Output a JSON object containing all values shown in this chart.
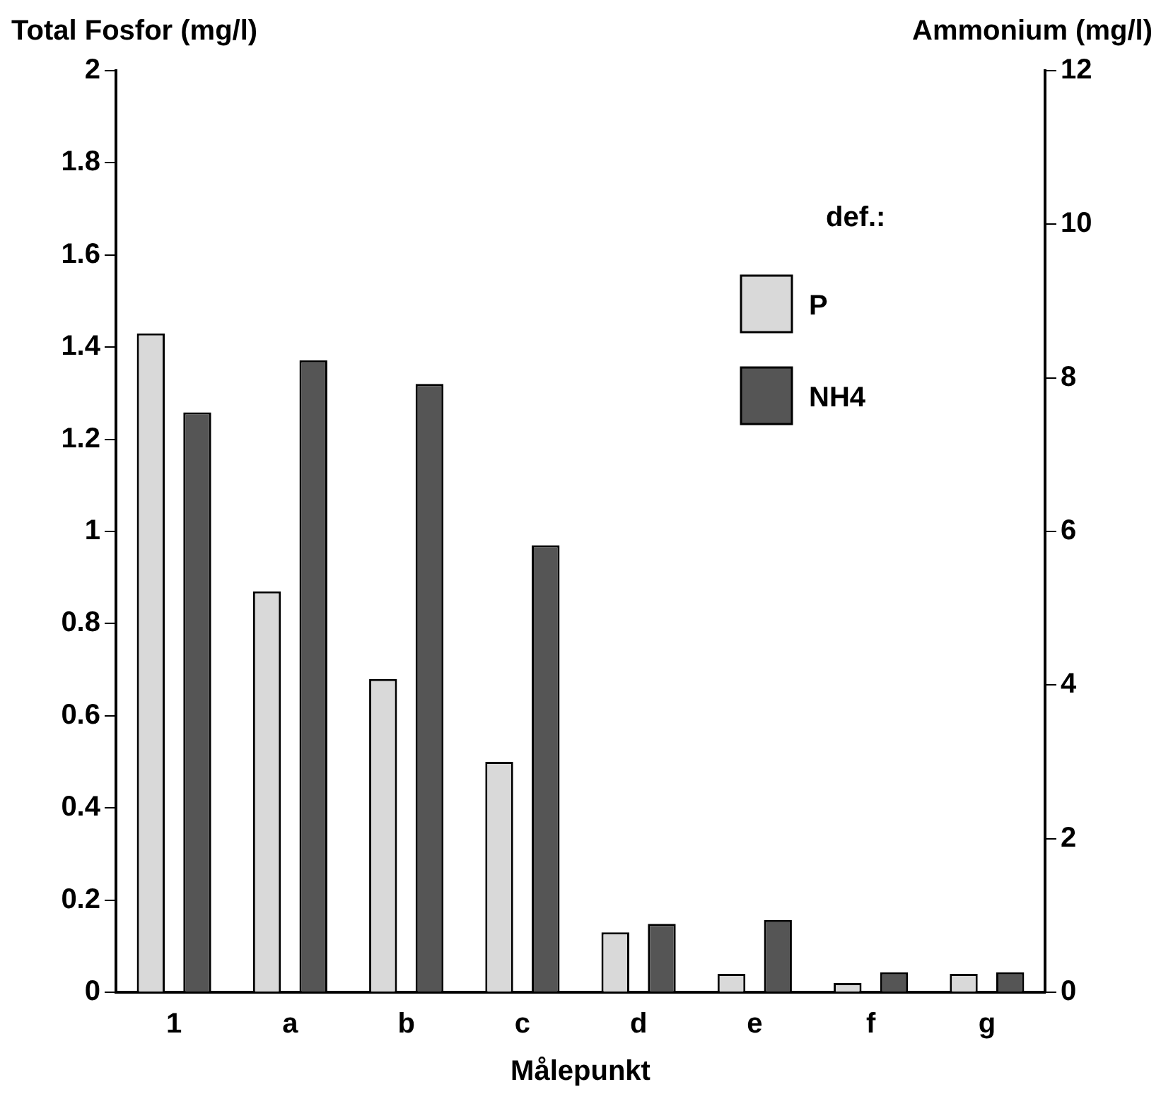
{
  "chart_data": {
    "type": "bar",
    "xlabel": "Målepunkt",
    "ylabel": "Total Fosfor (mg/l)",
    "y2label": "Ammonium (mg/l)",
    "legend_title": "def.:",
    "legend": "top right",
    "grid": false,
    "categories": [
      "1",
      "a",
      "b",
      "c",
      "d",
      "e",
      "f",
      "g"
    ],
    "series": [
      {
        "name": "P",
        "color": "#d9d9d9",
        "values": [
          1.43,
          0.87,
          0.68,
          0.5,
          0.13,
          0.04,
          0.02,
          0.04
        ]
      },
      {
        "name": "NH4",
        "color": "#555555",
        "axis": "y2",
        "values": [
          7.55,
          8.23,
          7.92,
          5.82,
          0.89,
          0.94,
          0.26,
          0.26
        ]
      }
    ],
    "ylim": [
      0,
      2
    ],
    "yticks": [
      0,
      0.2,
      0.4,
      0.6,
      0.8,
      1,
      1.2,
      1.4,
      1.6,
      1.8,
      2
    ],
    "y2lim": [
      0,
      12
    ],
    "y2ticks": [
      0,
      2,
      4,
      6,
      8,
      10,
      12
    ]
  }
}
